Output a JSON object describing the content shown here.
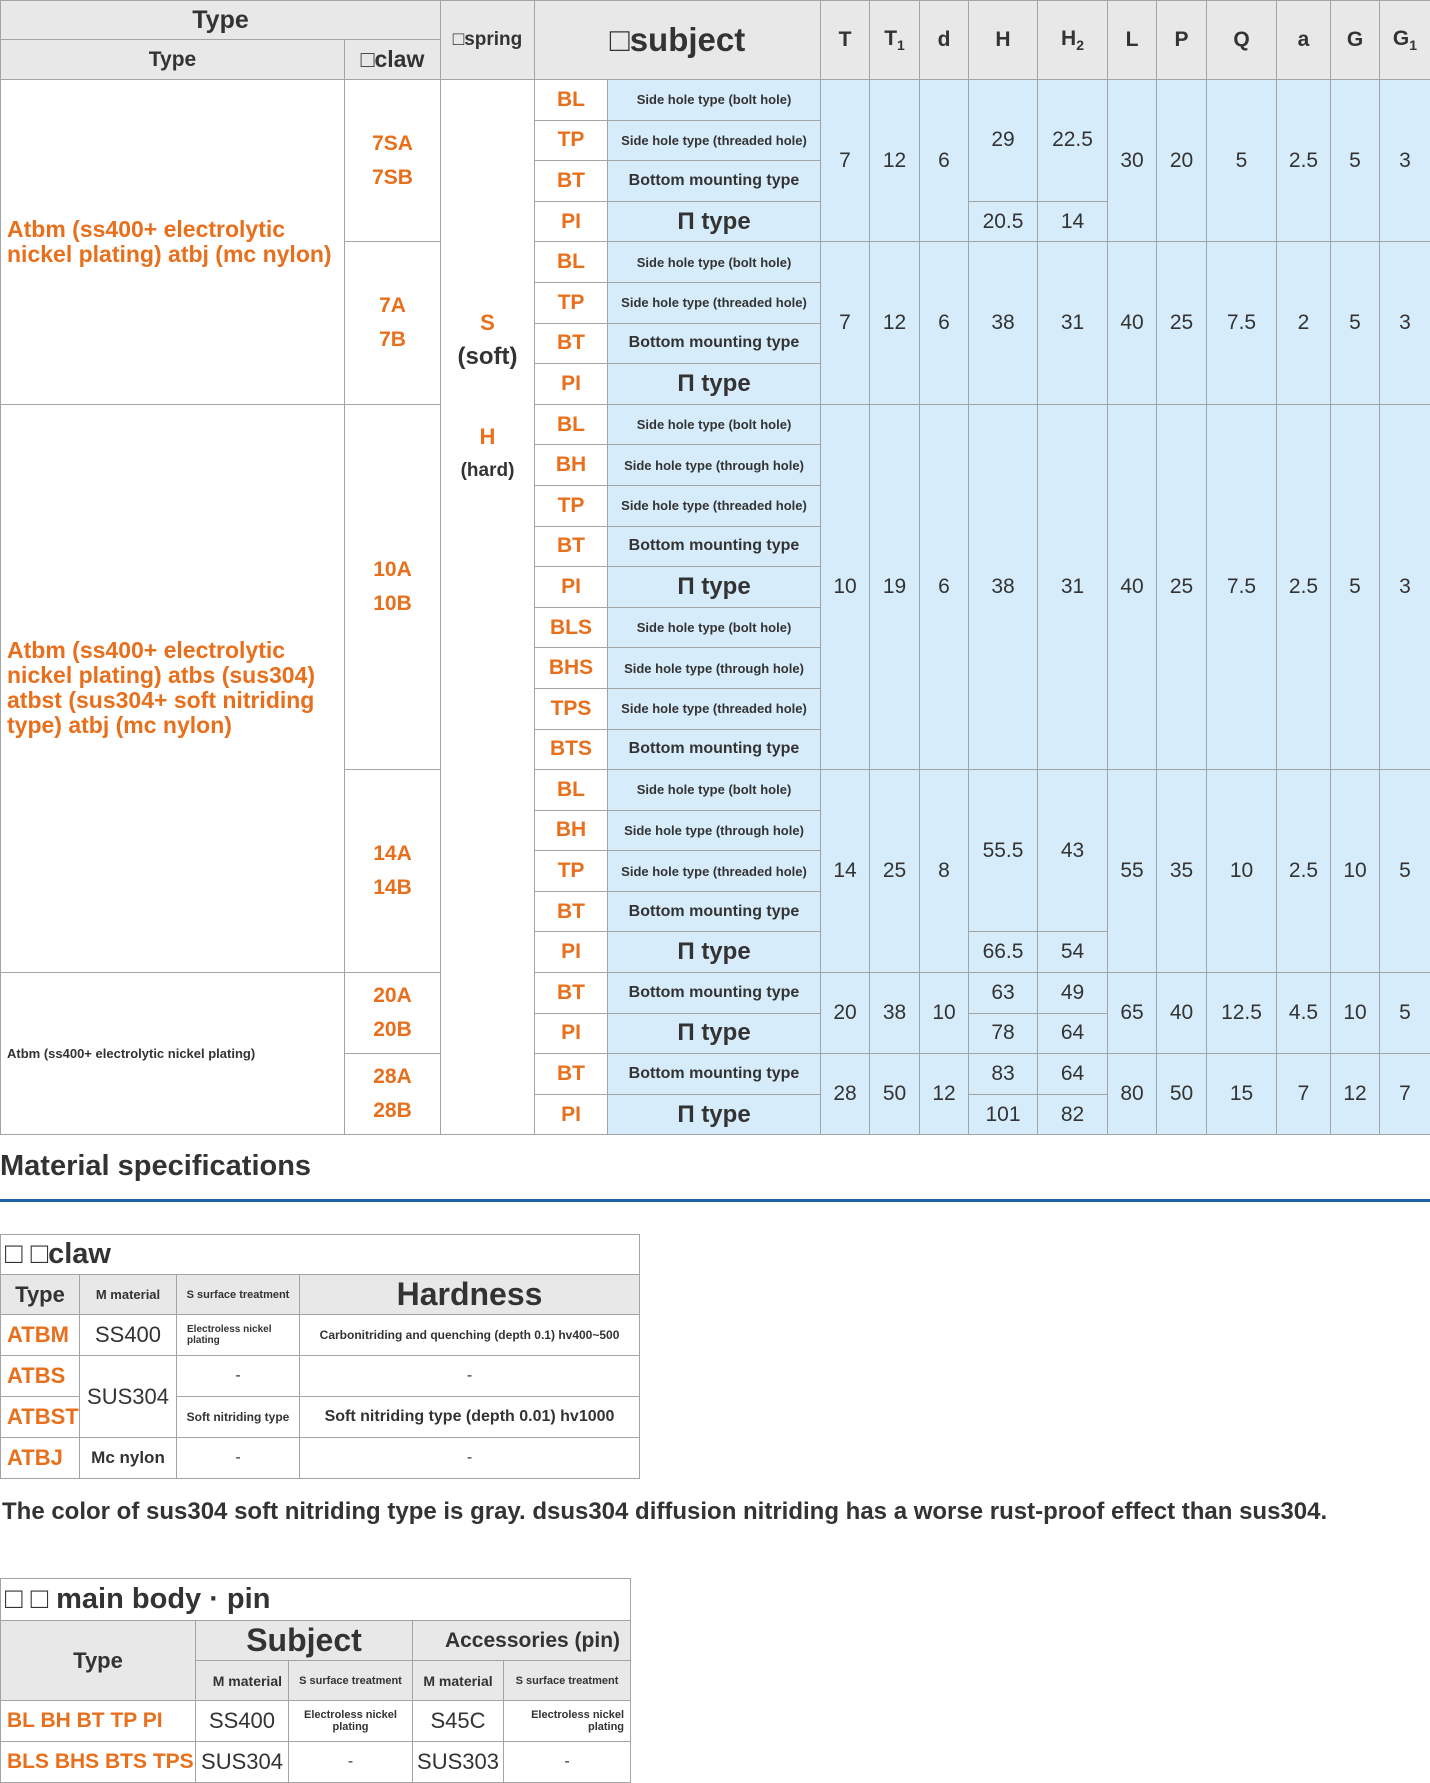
{
  "main_table": {
    "header": {
      "type_top": "Type",
      "type": "Type",
      "claw": "□claw",
      "spring": "□spring",
      "subject": "□subject",
      "dims": [
        "T",
        "T1",
        "d",
        "H",
        "H2",
        "L",
        "P",
        "Q",
        "a",
        "G",
        "G1"
      ]
    },
    "spring_lines": [
      "S",
      "(soft)",
      "H",
      "(hard)"
    ],
    "blocks": [
      {
        "type_text": "Atbm (ss400+ electrolytic nickel plating) atbj (mc nylon)",
        "style": "orange",
        "sizes": [
          {
            "labels": [
              "7SA",
              "7SB"
            ],
            "rows": [
              {
                "code": "BL",
                "desc": "Side hole type (bolt hole)"
              },
              {
                "code": "TP",
                "desc": "Side hole type (threaded hole)"
              },
              {
                "code": "BT",
                "desc": "Bottom mounting type"
              },
              {
                "code": "PI",
                "desc": "Π type"
              }
            ],
            "dims": {
              "T": [
                "7"
              ],
              "T1": [
                "12"
              ],
              "d": [
                "6"
              ],
              "H": [
                "29",
                "20.5"
              ],
              "H2": [
                "22.5",
                "14"
              ],
              "L": [
                "30"
              ],
              "P": [
                "20"
              ],
              "Q": [
                "5"
              ],
              "a": [
                "2.5"
              ],
              "G": [
                "5"
              ],
              "G1": [
                "3"
              ]
            }
          },
          {
            "labels": [
              "7A",
              "7B"
            ],
            "rows": [
              {
                "code": "BL",
                "desc": "Side hole type (bolt hole)"
              },
              {
                "code": "TP",
                "desc": "Side hole type (threaded hole)"
              },
              {
                "code": "BT",
                "desc": "Bottom mounting type"
              },
              {
                "code": "PI",
                "desc": "Π type"
              }
            ],
            "dims": {
              "T": [
                "7"
              ],
              "T1": [
                "12"
              ],
              "d": [
                "6"
              ],
              "H": [
                "38"
              ],
              "H2": [
                "31"
              ],
              "L": [
                "40"
              ],
              "P": [
                "25"
              ],
              "Q": [
                "7.5"
              ],
              "a": [
                "2"
              ],
              "G": [
                "5"
              ],
              "G1": [
                "3"
              ]
            }
          }
        ]
      },
      {
        "type_text": "Atbm (ss400+ electrolytic nickel plating) atbs (sus304) atbst (sus304+ soft nitriding type) atbj (mc nylon)",
        "style": "orange",
        "sizes": [
          {
            "labels": [
              "10A",
              "10B"
            ],
            "rows": [
              {
                "code": "BL",
                "desc": "Side hole type (bolt hole)"
              },
              {
                "code": "BH",
                "desc": "Side hole type (through hole)"
              },
              {
                "code": "TP",
                "desc": "Side hole type (threaded hole)"
              },
              {
                "code": "BT",
                "desc": "Bottom mounting type"
              },
              {
                "code": "PI",
                "desc": "Π type"
              },
              {
                "code": "BLS",
                "desc": "Side hole type (bolt hole)"
              },
              {
                "code": "BHS",
                "desc": "Side hole type (through hole)"
              },
              {
                "code": "TPS",
                "desc": "Side hole type (threaded hole)"
              },
              {
                "code": "BTS",
                "desc": "Bottom mounting type"
              }
            ],
            "dims": {
              "T": [
                "10"
              ],
              "T1": [
                "19"
              ],
              "d": [
                "6"
              ],
              "H": [
                "38"
              ],
              "H2": [
                "31"
              ],
              "L": [
                "40"
              ],
              "P": [
                "25"
              ],
              "Q": [
                "7.5"
              ],
              "a": [
                "2.5"
              ],
              "G": [
                "5"
              ],
              "G1": [
                "3"
              ]
            }
          },
          {
            "labels": [
              "14A",
              "14B"
            ],
            "rows": [
              {
                "code": "BL",
                "desc": "Side hole type (bolt hole)"
              },
              {
                "code": "BH",
                "desc": "Side hole type (through hole)"
              },
              {
                "code": "TP",
                "desc": "Side hole type (threaded hole)"
              },
              {
                "code": "BT",
                "desc": "Bottom mounting type"
              },
              {
                "code": "PI",
                "desc": "Π type"
              }
            ],
            "dims": {
              "T": [
                "14"
              ],
              "T1": [
                "25"
              ],
              "d": [
                "8"
              ],
              "H": [
                "55.5",
                "66.5"
              ],
              "H2": [
                "43",
                "54"
              ],
              "L": [
                "55"
              ],
              "P": [
                "35"
              ],
              "Q": [
                "10"
              ],
              "a": [
                "2.5"
              ],
              "G": [
                "10"
              ],
              "G1": [
                "5"
              ]
            }
          }
        ]
      },
      {
        "type_text": "Atbm (ss400+ electrolytic nickel plating)",
        "style": "small",
        "sizes": [
          {
            "labels": [
              "20A",
              "20B"
            ],
            "rows": [
              {
                "code": "BT",
                "desc": "Bottom mounting type"
              },
              {
                "code": "PI",
                "desc": "Π type"
              }
            ],
            "dims": {
              "T": [
                "20"
              ],
              "T1": [
                "38"
              ],
              "d": [
                "10"
              ],
              "H": [
                "63",
                "78"
              ],
              "H2": [
                "49",
                "64"
              ],
              "L": [
                "65"
              ],
              "P": [
                "40"
              ],
              "Q": [
                "12.5"
              ],
              "a": [
                "4.5"
              ],
              "G": [
                "10"
              ],
              "G1": [
                "5"
              ]
            }
          },
          {
            "labels": [
              "28A",
              "28B"
            ],
            "rows": [
              {
                "code": "BT",
                "desc": "Bottom mounting type"
              },
              {
                "code": "PI",
                "desc": "Π type"
              }
            ],
            "dims": {
              "T": [
                "28"
              ],
              "T1": [
                "50"
              ],
              "d": [
                "12"
              ],
              "H": [
                "83",
                "101"
              ],
              "H2": [
                "64",
                "82"
              ],
              "L": [
                "80"
              ],
              "P": [
                "50"
              ],
              "Q": [
                "15"
              ],
              "a": [
                "7"
              ],
              "G": [
                "12"
              ],
              "G1": [
                "7"
              ]
            }
          }
        ]
      }
    ]
  },
  "material": {
    "title": "Material specifications",
    "claw_table": {
      "title": "□ □claw",
      "headers": [
        "Type",
        "M material",
        "S surface treatment",
        "Hardness"
      ],
      "rows": [
        {
          "type": "ATBM",
          "material": "SS400",
          "surface": "Electroless nickel plating",
          "hardness": "Carbonitriding and quenching (depth 0.1) hv400~500"
        },
        {
          "type": "ATBS",
          "material": "SUS304",
          "surface": "-",
          "hardness": "-"
        },
        {
          "type": "ATBST",
          "surface": "Soft nitriding type",
          "hardness": "Soft nitriding type (depth 0.01) hv1000"
        },
        {
          "type": "ATBJ",
          "material": "Mc nylon",
          "surface": "-",
          "hardness": "-"
        }
      ]
    },
    "note": "The color of sus304 soft nitriding type is gray. dsus304 diffusion nitriding has a worse rust-proof effect than sus304.",
    "body_table": {
      "title": "□ □ main body · pin",
      "type_header": "Type",
      "subject_header": "Subject",
      "accessories_header": "Accessories (pin)",
      "sub_headers": [
        "M material",
        "S surface treatment",
        "M material",
        "S surface treatment"
      ],
      "rows": [
        {
          "type": "BL BH BT TP PI",
          "subject_material": "SS400",
          "subject_surface": "Electroless nickel plating",
          "pin_material": "S45C",
          "pin_surface": "Electroless nickel plating"
        },
        {
          "type": "BLS BHS BTS TPS",
          "subject_material": "SUS304",
          "subject_surface": "-",
          "pin_material": "SUS303",
          "pin_surface": "-"
        }
      ]
    }
  },
  "colors": {
    "accent_orange": "#e86f1c",
    "cell_blue": "#d7ecfa",
    "header_gray": "#e8e8e8",
    "rule_blue": "#1c63a3"
  }
}
